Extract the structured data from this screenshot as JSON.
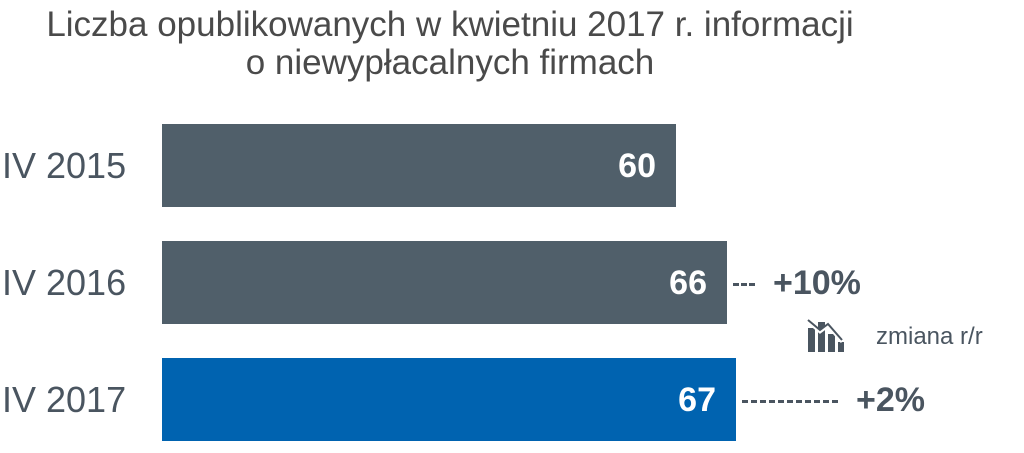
{
  "chart_data": {
    "type": "bar",
    "orientation": "horizontal",
    "title_line1": "Liczba opublikowanych w kwietniu 2017 r. informacji",
    "title_line2": "o niewypłacalnych firmach",
    "categories": [
      "IV 2015",
      "IV 2016",
      "IV 2017"
    ],
    "values": [
      60,
      66,
      67
    ],
    "value_labels": [
      "60",
      "66",
      "67"
    ],
    "changes": [
      "",
      "+10%",
      "+2%"
    ],
    "legend": {
      "label": "zmiana r/r",
      "icon": "chart-down-icon"
    },
    "colors": [
      "#505f6a",
      "#505f6a",
      "#0063b0"
    ],
    "xlim": [
      0,
      67
    ],
    "grid": false
  }
}
